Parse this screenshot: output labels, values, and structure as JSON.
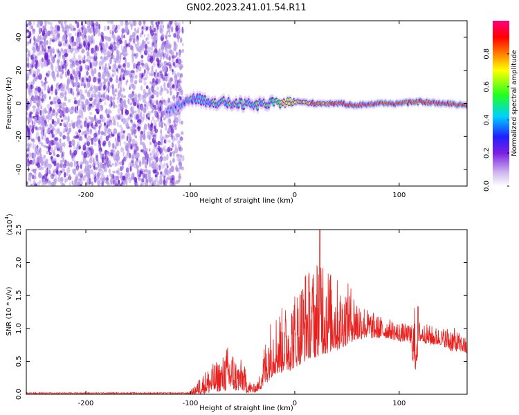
{
  "title": "GN02.2023.241.01.54.R11",
  "colors": {
    "snr_line": "#e8201e",
    "low_power": "#b59ae6",
    "mid_power": "#6a1fd0"
  },
  "chart_data": [
    {
      "type": "heatmap",
      "name": "spectrogram",
      "xlabel": "Height of straight line (km)",
      "ylabel": "Frequency (Hz)",
      "xlim": [
        -257,
        165
      ],
      "ylim": [
        -50,
        50
      ],
      "xticks": [
        -200,
        -100,
        0,
        100
      ],
      "yticks": [
        -40,
        -20,
        0,
        20,
        40
      ],
      "xtick_labels": [
        "-200",
        "-100",
        "0",
        "100"
      ],
      "ytick_labels": [
        "-40",
        "-20",
        "0",
        "20",
        "40"
      ],
      "colorbar": {
        "label": "Normalized spectral amplitude",
        "range": [
          0.0,
          1.0
        ],
        "ticks": [
          0.0,
          0.2,
          0.4,
          0.6,
          0.8
        ],
        "tick_labels": [
          "0.0",
          "0.2",
          "0.4",
          "0.6",
          "0.8"
        ],
        "colormap": [
          "#ffffff",
          "#c8a8f0",
          "#7a20e0",
          "#2020ff",
          "#00d0ff",
          "#20ff20",
          "#ffff00",
          "#ff8000",
          "#ff0000",
          "#ff0080"
        ]
      },
      "noise_region": {
        "x_range": [
          -257,
          -107
        ],
        "level": 0.1
      },
      "signal_track": [
        {
          "x": -120,
          "freq": -5,
          "amp": 0.3
        },
        {
          "x": -100,
          "freq": 3,
          "amp": 0.45
        },
        {
          "x": -80,
          "freq": 1,
          "amp": 0.5
        },
        {
          "x": -60,
          "freq": 0,
          "amp": 0.5
        },
        {
          "x": -40,
          "freq": -1,
          "amp": 0.5
        },
        {
          "x": -20,
          "freq": 0,
          "amp": 0.6
        },
        {
          "x": 0,
          "freq": 1,
          "amp": 0.7
        },
        {
          "x": 20,
          "freq": 0,
          "amp": 0.8
        },
        {
          "x": 40,
          "freq": 0,
          "amp": 0.85
        },
        {
          "x": 60,
          "freq": -1,
          "amp": 0.9
        },
        {
          "x": 80,
          "freq": 0,
          "amp": 0.9
        },
        {
          "x": 100,
          "freq": 0,
          "amp": 0.9
        },
        {
          "x": 120,
          "freq": 1,
          "amp": 0.85
        },
        {
          "x": 140,
          "freq": 0,
          "amp": 0.9
        },
        {
          "x": 165,
          "freq": -1,
          "amp": 0.9
        }
      ]
    },
    {
      "type": "line",
      "name": "snr",
      "xlabel": "Height of straight line (km)",
      "ylabel": "SNR (10 * v/v)",
      "y_multiplier": "(x10",
      "y_multiplier_exp": "4",
      "y_multiplier_close": ")",
      "xlim": [
        -257,
        165
      ],
      "ylim": [
        0,
        2.5
      ],
      "xticks": [
        -200,
        -100,
        0,
        100
      ],
      "yticks": [
        0.0,
        0.5,
        1.0,
        1.5,
        2.0,
        2.5
      ],
      "xtick_labels": [
        "-200",
        "-100",
        "0",
        "100"
      ],
      "ytick_labels": [
        "0.0",
        "0.5",
        "1.0",
        "1.5",
        "2.0",
        "2.5"
      ],
      "envelope": {
        "x": [
          -257,
          -120,
          -100,
          -95,
          -90,
          -80,
          -70,
          -65,
          -60,
          -55,
          -50,
          -45,
          -40,
          -35,
          -30,
          -25,
          -20,
          -15,
          -10,
          -5,
          0,
          5,
          10,
          15,
          20,
          25,
          30,
          35,
          40,
          45,
          50,
          55,
          60,
          65,
          70,
          75,
          80,
          90,
          100,
          110,
          115,
          120,
          130,
          140,
          150,
          160,
          165
        ],
        "upper": [
          0.03,
          0.03,
          0.05,
          0.15,
          0.3,
          0.45,
          0.55,
          0.75,
          0.7,
          0.5,
          0.55,
          0.25,
          0.15,
          0.2,
          0.7,
          1.1,
          1.25,
          1.3,
          1.35,
          1.4,
          1.6,
          1.7,
          1.95,
          1.9,
          2.0,
          2.5,
          2.1,
          1.85,
          1.8,
          1.6,
          1.7,
          1.65,
          1.5,
          1.4,
          1.3,
          1.25,
          1.2,
          1.15,
          1.1,
          1.05,
          1.35,
          1.1,
          1.05,
          1.0,
          1.05,
          0.9,
          0.85
        ],
        "lower": [
          0.0,
          0.0,
          0.0,
          0.0,
          0.0,
          0.02,
          0.05,
          0.05,
          0.05,
          0.05,
          0.05,
          0.02,
          0.02,
          0.05,
          0.1,
          0.2,
          0.3,
          0.3,
          0.35,
          0.35,
          0.4,
          0.45,
          0.5,
          0.55,
          0.55,
          0.6,
          0.6,
          0.65,
          0.65,
          0.7,
          0.75,
          0.8,
          0.8,
          0.85,
          0.85,
          0.85,
          0.85,
          0.85,
          0.8,
          0.8,
          0.3,
          0.8,
          0.75,
          0.75,
          0.65,
          0.65,
          0.6
        ]
      }
    }
  ]
}
